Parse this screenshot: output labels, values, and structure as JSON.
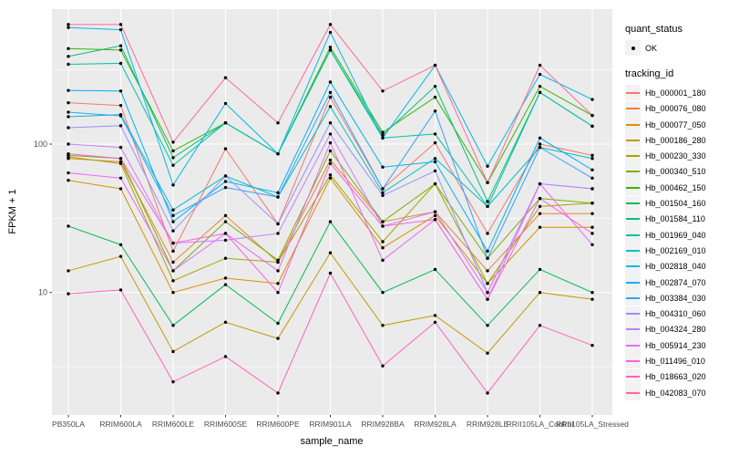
{
  "colors": {
    "panel_bg": "#EBEBEB",
    "grid": "#FFFFFF",
    "axis_text": "#4D4D4D",
    "tick_mark": "#333333",
    "point": "#000000",
    "legend_key_bg": "#F2F2F2"
  },
  "legend": {
    "quant_status_title": "quant_status",
    "quant_status_entries": [
      {
        "label": "OK",
        "marker": "black-point"
      }
    ],
    "tracking_id_title": "tracking_id"
  },
  "chart_data": {
    "type": "line",
    "title": "",
    "xlabel": "sample_name",
    "ylabel": "FPKM + 1",
    "y_scale": "log10",
    "y_axis_ticks": [
      100,
      10
    ],
    "y_minor_gridlines": [
      3.162,
      31.623,
      316.228
    ],
    "ylim": [
      1.5,
      812
    ],
    "grid": true,
    "legend_position": "right",
    "categories": [
      "PB350LA",
      "RRIM600LA",
      "RRIM600LE",
      "RRIM600SE",
      "RRIM600PE",
      "RRIM901LA",
      "RRIM928BA",
      "RRIM928LA",
      "RRIM928LE",
      "RRII105LA_Control",
      "RRII105LA_Stressed"
    ],
    "series": [
      {
        "name": "Hb_000001_180",
        "color": "#F8766D",
        "values": [
          190,
          182,
          19,
          93,
          29,
          207,
          50,
          102,
          25,
          100,
          84
        ]
      },
      {
        "name": "Hb_000076_080",
        "color": "#EA8331",
        "values": [
          80,
          76,
          16,
          33,
          16,
          78,
          30,
          35,
          14,
          34,
          34
        ]
      },
      {
        "name": "Hb_000077_050",
        "color": "#D89000",
        "values": [
          57,
          50,
          10,
          12.5,
          11.5,
          59,
          20,
          33,
          11.5,
          27.5,
          27.5
        ]
      },
      {
        "name": "Hb_000186_280",
        "color": "#C09B00",
        "values": [
          14,
          17.5,
          4,
          6.3,
          4.9,
          18.5,
          6,
          7,
          3.9,
          10,
          9
        ]
      },
      {
        "name": "Hb_000230_330",
        "color": "#A3A500",
        "values": [
          82,
          74,
          12,
          17,
          16,
          62,
          22,
          54,
          11.5,
          38,
          40
        ]
      },
      {
        "name": "Hb_000340_510",
        "color": "#7CAE00",
        "values": [
          84,
          80,
          14,
          30,
          16.5,
          90,
          30,
          54,
          17,
          43,
          40
        ]
      },
      {
        "name": "Hb_000462_150",
        "color": "#39B600",
        "values": [
          440,
          430,
          90,
          139,
          86,
          450,
          120,
          207,
          55,
          245,
          156
        ]
      },
      {
        "name": "Hb_001504_160",
        "color": "#00BB4E",
        "values": [
          28,
          21,
          6,
          11.3,
          6.2,
          30,
          10,
          14.3,
          6,
          14.3,
          10
        ]
      },
      {
        "name": "Hb_001584_110",
        "color": "#00BF7D",
        "values": [
          390,
          460,
          81,
          139,
          86,
          430,
          115,
          245,
          41,
          223,
          132
        ]
      },
      {
        "name": "Hb_001969_040",
        "color": "#00C1A3",
        "values": [
          345,
          350,
          72,
          139,
          86,
          430,
          110,
          117,
          38,
          223,
          132
        ]
      },
      {
        "name": "Hb_002169_010",
        "color": "#00BFC4",
        "values": [
          153,
          158,
          36,
          61,
          44,
          179,
          47,
          80,
          38,
          95,
          80
        ]
      },
      {
        "name": "Hb_002818_040",
        "color": "#00BAE0",
        "values": [
          610,
          590,
          53,
          188,
          86,
          566,
          110,
          340,
          71,
          295,
          200
        ]
      },
      {
        "name": "Hb_002874_070",
        "color": "#00B0F6",
        "values": [
          230,
          228,
          30,
          56,
          47,
          262,
          70,
          76,
          19,
          110,
          67
        ]
      },
      {
        "name": "Hb_003384_030",
        "color": "#35A2FF",
        "values": [
          164,
          155,
          33,
          51,
          44,
          223,
          50,
          167,
          17,
          95,
          59
        ]
      },
      {
        "name": "Hb_004310_060",
        "color": "#9590FF",
        "values": [
          129,
          133,
          26,
          61,
          29,
          139,
          45,
          66,
          10,
          54,
          50
        ]
      },
      {
        "name": "Hb_004324_280",
        "color": "#C77CFF",
        "values": [
          100,
          95,
          21.5,
          22.5,
          25,
          117,
          28,
          35,
          10,
          54,
          50
        ]
      },
      {
        "name": "Hb_005914_230",
        "color": "#E76BF3",
        "values": [
          64,
          59,
          14,
          25,
          14,
          102,
          16.5,
          31,
          9,
          54,
          21
        ]
      },
      {
        "name": "Hb_011496_010",
        "color": "#FA62DB",
        "values": [
          86,
          80,
          21.5,
          25,
          10,
          74,
          28,
          31,
          9,
          43,
          25
        ]
      },
      {
        "name": "Hb_018663_020",
        "color": "#FF62BC",
        "values": [
          9.8,
          10.4,
          2.5,
          3.7,
          2.1,
          13.5,
          3.2,
          6.3,
          2.1,
          6,
          4.4
        ]
      },
      {
        "name": "Hb_042083_070",
        "color": "#FF6A98",
        "values": [
          640,
          640,
          103,
          280,
          139,
          640,
          228,
          340,
          55,
          340,
          156
        ]
      }
    ]
  }
}
